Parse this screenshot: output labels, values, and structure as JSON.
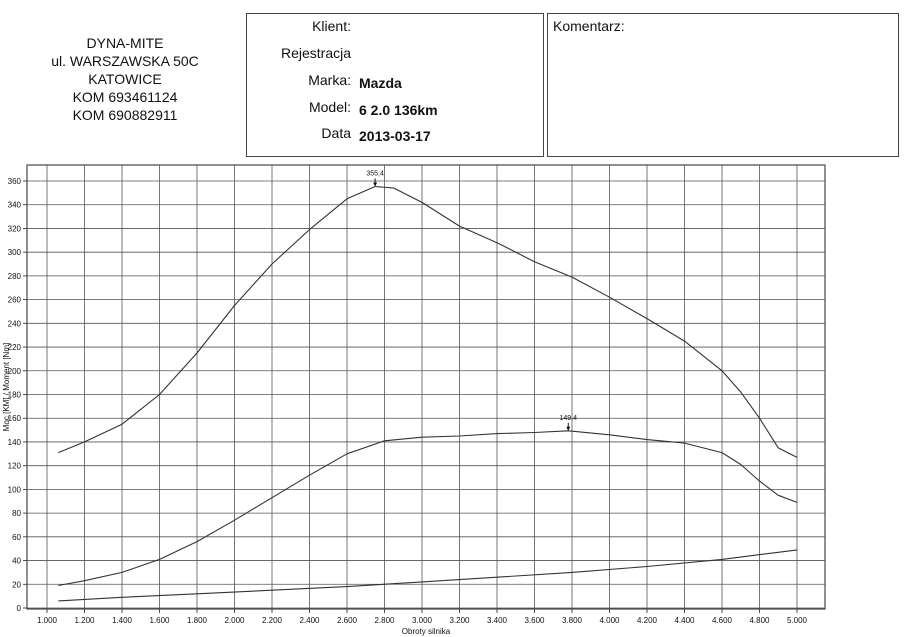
{
  "shop": {
    "lines": [
      "DYNA-MITE",
      "ul. WARSZAWSKA 50C",
      "KATOWICE",
      "KOM 693461124",
      "KOM 690882911"
    ]
  },
  "client": {
    "klient_label": "Klient:",
    "klient_value": "",
    "rejestracja_label": "Rejestracja",
    "rejestracja_value": "",
    "marka_label": "Marka:",
    "marka_value": "Mazda",
    "model_label": "Model:",
    "model_value": "6 2.0 136km",
    "data_label": "Data",
    "data_value": "2013-03-17"
  },
  "comment": {
    "label": "Komentarz:"
  },
  "chart_data": {
    "type": "line",
    "xlabel": "Obroty silnika",
    "ylabel": "Moc [KM] / Moment [Nm]",
    "xlim": [
      1000,
      5000
    ],
    "ylim": [
      0,
      360
    ],
    "x_ticks": [
      "1.000",
      "1.200",
      "1.400",
      "1.600",
      "1.800",
      "2.000",
      "2.200",
      "2.400",
      "2.600",
      "2.800",
      "3.000",
      "3.200",
      "3.400",
      "3.600",
      "3.800",
      "4.000",
      "4.200",
      "4.400",
      "4.600",
      "4.800",
      "5.000"
    ],
    "y_ticks": [
      "0",
      "20",
      "40",
      "60",
      "80",
      "100",
      "120",
      "140",
      "160",
      "180",
      "200",
      "220",
      "240",
      "260",
      "280",
      "300",
      "320",
      "340",
      "360"
    ],
    "grid": true,
    "series": [
      {
        "x": [
          1060,
          1200,
          1400,
          1600,
          1800,
          2000,
          2200,
          2400,
          2600,
          2750,
          2850,
          3000,
          3200,
          3400,
          3600,
          3800,
          4000,
          4200,
          4400,
          4600,
          4700,
          4800,
          4900,
          5000
        ],
        "y": [
          131,
          140,
          155,
          180,
          215,
          255,
          290,
          319,
          345,
          355.4,
          354,
          342,
          322,
          308,
          292,
          279,
          262,
          244,
          225,
          200,
          182,
          160,
          135,
          127
        ]
      },
      {
        "x": [
          1060,
          1200,
          1400,
          1600,
          1800,
          2000,
          2200,
          2400,
          2600,
          2800,
          3000,
          3200,
          3400,
          3600,
          3780,
          4000,
          4200,
          4400,
          4600,
          4700,
          4800,
          4900,
          5000
        ],
        "y": [
          19,
          23,
          30,
          41,
          56,
          74,
          93,
          112,
          130,
          141,
          144,
          145,
          147,
          148,
          149.4,
          146,
          142,
          139,
          131,
          121,
          107,
          95,
          89
        ]
      },
      {
        "x": [
          1060,
          1400,
          1800,
          2200,
          2600,
          3000,
          3400,
          3800,
          4200,
          4600,
          4900,
          5000
        ],
        "y": [
          6,
          9,
          12,
          15,
          18,
          22,
          26,
          30,
          35,
          41,
          47,
          49
        ]
      }
    ],
    "annotations": [
      {
        "text": "355,4",
        "x": 2750,
        "y": 355.4
      },
      {
        "text": "149,4",
        "x": 3780,
        "y": 149.4
      }
    ]
  }
}
